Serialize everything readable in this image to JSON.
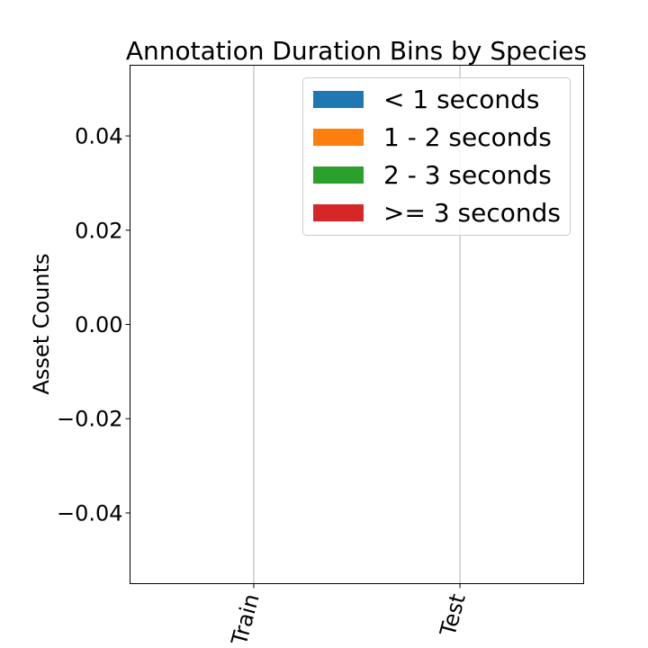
{
  "chart_data": {
    "type": "bar",
    "stacked": true,
    "title": "Annotation Duration Bins by Species",
    "xlabel": "",
    "ylabel": "Asset Counts",
    "categories": [
      "Train",
      "Test"
    ],
    "ylim": [
      -0.055,
      0.055
    ],
    "yticks": [
      0.04,
      0.02,
      0.0,
      -0.02,
      -0.04
    ],
    "ytick_labels": [
      "0.04",
      "0.02",
      "0.00",
      "−0.02",
      "−0.04"
    ],
    "grid": "vertical",
    "legend_position": "top-right",
    "series": [
      {
        "name": "< 1 seconds",
        "color": "#1f77b4",
        "values": [
          0,
          0
        ]
      },
      {
        "name": "1 - 2 seconds",
        "color": "#ff7f0e",
        "values": [
          0,
          0
        ]
      },
      {
        "name": "2 - 3 seconds",
        "color": "#2ca02c",
        "values": [
          0,
          0
        ]
      },
      {
        "name": ">= 3 seconds",
        "color": "#d62728",
        "values": [
          0,
          0
        ]
      }
    ]
  }
}
